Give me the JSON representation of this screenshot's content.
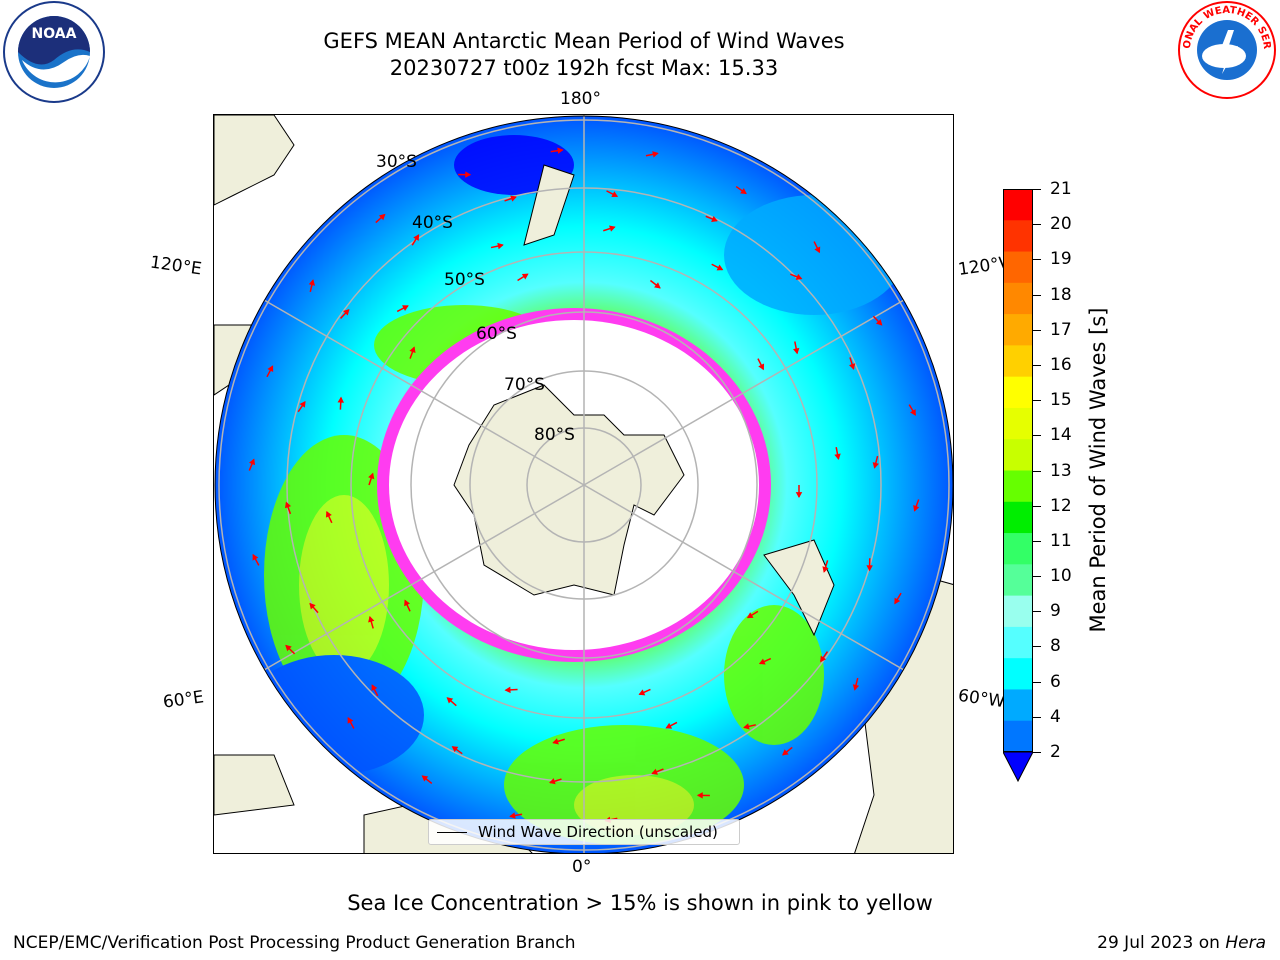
{
  "title": {
    "line1": "GEFS MEAN Antarctic Mean Period of Wind Waves",
    "line2_run": "20230727 t00z 192h fcst",
    "line2_max": "Max: 15.33"
  },
  "map": {
    "longitude_labels": {
      "top": "180°",
      "bottom": "0°",
      "upper_left": "120°E",
      "upper_right": "120°W",
      "lower_left": "60°E",
      "lower_right": "60°W"
    },
    "latitude_labels": [
      "30°S",
      "40°S",
      "50°S",
      "60°S",
      "70°S",
      "80°S"
    ],
    "legend_label": "Wind Wave Direction (unscaled)",
    "colors": {
      "land": "#efefdb",
      "ice_edge_pink": "#ff3cf0",
      "arrow": "#ff0000",
      "grid": "#b4b4b4"
    }
  },
  "colorbar": {
    "label": "Mean Period of Wind Waves [s]",
    "ticks": [
      "21",
      "20",
      "19",
      "18",
      "17",
      "16",
      "15",
      "14",
      "13",
      "12",
      "11",
      "10",
      "9",
      "8",
      "6",
      "4",
      "2"
    ],
    "colors": [
      "#ff0000",
      "#ff3300",
      "#ff6600",
      "#ff8800",
      "#ffaa00",
      "#ffd000",
      "#ffff00",
      "#e6ff00",
      "#c8ff00",
      "#66ff00",
      "#00ee00",
      "#33ff66",
      "#55ff99",
      "#99ffee",
      "#55ffff",
      "#00ffff",
      "#00aaff",
      "#0077ff",
      "#0000ff"
    ]
  },
  "footer": {
    "note": "Sea Ice Concentration > 15% is shown in pink to yellow",
    "credit": "NCEP/EMC/Verification Post Processing Product Generation Branch",
    "date": "29 Jul 2023 on",
    "machine": "Hera"
  },
  "logos": {
    "left": "NOAA",
    "right": "NATIONAL WEATHER SERVICE"
  }
}
